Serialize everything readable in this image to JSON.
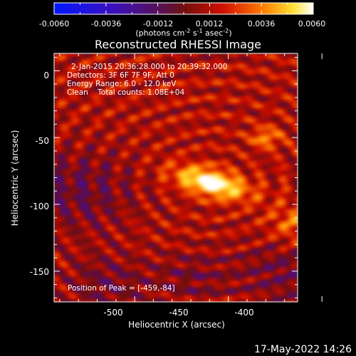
{
  "colorbar": {
    "ticks": [
      "-0.0060",
      "-0.0036",
      "-0.0012",
      "0.0012",
      "0.0036",
      "0.0060"
    ],
    "unit_text": "(photons cm",
    "unit_sup1": "-2",
    "unit_mid": " s",
    "unit_sup2": "-1",
    "unit_end": " asec",
    "unit_sup3": "-2",
    "unit_close": ")"
  },
  "header": {
    "title": "Reconstructed RHESSI Image"
  },
  "info": {
    "time_range": "2-Jan-2015 20:36:28.000 to 20:39:32.000",
    "detectors": "Detectors: 3F 6F 7F 9F, Att 0",
    "energy": "Energy Range: 6.0 - 12.0 keV",
    "clean": "Clean    Total counts: 1.08E+04",
    "peak": "Position of Peak = [-459,-84]"
  },
  "footer": {
    "date": "17-May-2022 14:26"
  },
  "colors": {
    "background": "#000000",
    "text": "#ffffff"
  },
  "chart_data": {
    "type": "heatmap",
    "title": "Reconstructed RHESSI Image",
    "xlabel": "Heliocentric X (arcsec)",
    "ylabel": "Heliocentric Y (arcsec)",
    "xlim": [
      -543,
      -413
    ],
    "ylim": [
      -173,
      13
    ],
    "x_ticks": [
      -500,
      -450,
      -400
    ],
    "y_ticks": [
      0,
      -50,
      -100,
      -150
    ],
    "x_tick_labels": [
      "-500",
      "-450",
      "-400"
    ],
    "y_tick_labels": [
      "0",
      "-50",
      "-100",
      "-150"
    ],
    "colorbar_range": [
      -0.006,
      0.006
    ],
    "colormap": "black-blue-purple-red-orange-yellow-white",
    "peak": {
      "x": -459,
      "y": -84
    },
    "source_ellipse": {
      "center": [
        -459,
        -84
      ],
      "semi_major": 15,
      "semi_minor": 7,
      "angle_deg": -22
    }
  }
}
